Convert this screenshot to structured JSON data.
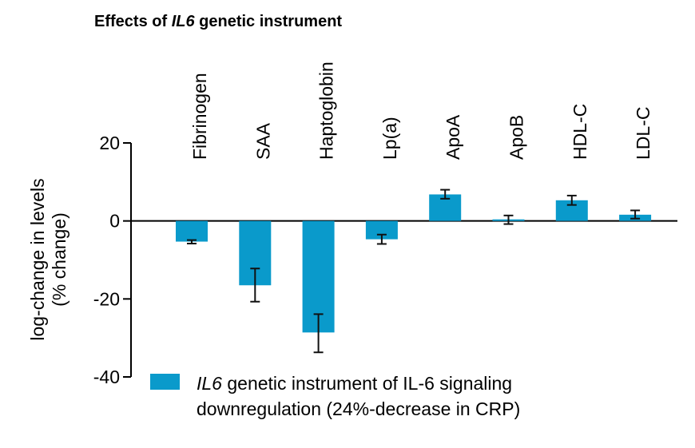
{
  "chart_data": {
    "type": "bar",
    "title": "Effects of IL6 genetic instrument",
    "title_parts": [
      {
        "text": "Effects of ",
        "italic": false
      },
      {
        "text": "IL6",
        "italic": true
      },
      {
        "text": " genetic instrument",
        "italic": false
      }
    ],
    "categories": [
      "Fibrinogen",
      "SAA",
      "Haptoglobin",
      "Lp(a)",
      "ApoA",
      "ApoB",
      "HDL-C",
      "LDL-C"
    ],
    "series": [
      {
        "name": "IL6 genetic instrument of IL-6 signaling downregulation (24%-decrease in CRP)",
        "color": "#0a9acb",
        "values": [
          -5.3,
          -16.5,
          -28.6,
          -4.7,
          6.8,
          0.4,
          5.3,
          1.6
        ],
        "error_low": [
          -5.8,
          -20.7,
          -33.7,
          -5.9,
          5.7,
          -0.8,
          4.1,
          0.6
        ],
        "error_high": [
          -4.9,
          -12.2,
          -23.9,
          -3.5,
          8.0,
          1.4,
          6.5,
          2.7
        ]
      }
    ],
    "xlabel": "",
    "ylabel_lines": [
      "log-change in levels",
      "(% change)"
    ],
    "ylim": [
      -40,
      20
    ],
    "yticks": [
      20,
      0,
      -20,
      -40
    ],
    "ytick_labels": [
      "20",
      "0",
      "-20",
      "-40"
    ],
    "grid": false,
    "category_label_position": "top, rotated vertical",
    "legend": {
      "placement": "bottom",
      "lines": [
        [
          {
            "text": "IL6",
            "italic": true
          },
          {
            "text": " genetic instrument of IL-6 signaling",
            "italic": false
          }
        ],
        [
          {
            "text": "downregulation (24%-decrease in CRP)",
            "italic": false
          }
        ]
      ]
    }
  }
}
